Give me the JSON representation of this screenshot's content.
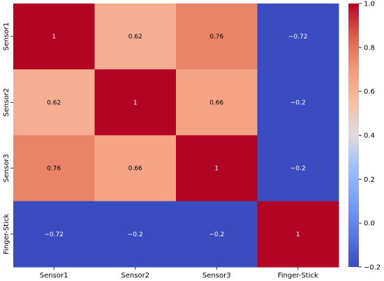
{
  "chart_data": {
    "type": "heatmap",
    "title": "",
    "xlabel": "",
    "ylabel": "",
    "x_categories": [
      "Sensor1",
      "Sensor2",
      "Sensor3",
      "Finger-Stick"
    ],
    "y_categories": [
      "Sensor1",
      "Sensor2",
      "Sensor3",
      "Finger-Stick"
    ],
    "values": [
      [
        1,
        0.62,
        0.76,
        -0.72
      ],
      [
        0.62,
        1,
        0.66,
        -0.2
      ],
      [
        0.76,
        0.66,
        1,
        -0.2
      ],
      [
        -0.72,
        -0.2,
        -0.2,
        1
      ]
    ],
    "cell_labels": [
      [
        "1",
        "0.62",
        "0.76",
        "−0.72"
      ],
      [
        "0.62",
        "1",
        "0.66",
        "−0.2"
      ],
      [
        "0.76",
        "0.66",
        "1",
        "−0.2"
      ],
      [
        "−0.72",
        "−0.2",
        "−0.2",
        "1"
      ]
    ],
    "colormap": "coolwarm",
    "vmin": -0.2,
    "vmax": 1.0,
    "colorbar": {
      "ticks": [
        -0.2,
        0.0,
        0.2,
        0.4,
        0.6,
        0.8,
        1.0
      ],
      "tick_labels": [
        "−0.2",
        "0.0",
        "0.2",
        "0.4",
        "0.6",
        "0.8",
        "1.0"
      ]
    },
    "grid": false
  }
}
